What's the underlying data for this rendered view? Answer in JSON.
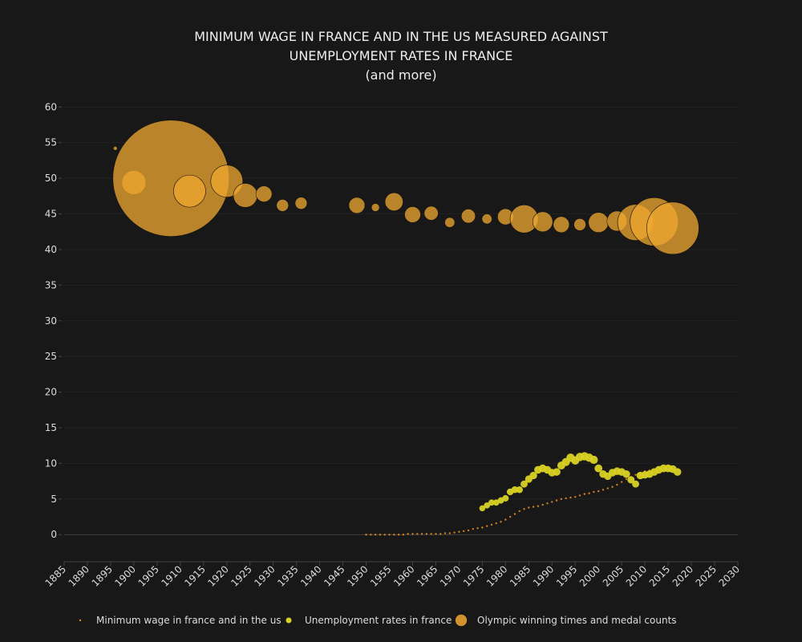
{
  "chart_data": {
    "type": "scatter",
    "title_lines": [
      "MINIMUM WAGE IN FRANCE AND IN THE US MEASURED AGAINST",
      "UNEMPLOYMENT RATES IN FRANCE",
      "(and more)"
    ],
    "xlabel": "",
    "ylabel": "",
    "xlim": [
      1885,
      2030
    ],
    "ylim": [
      -3.8,
      61.5
    ],
    "x_ticks": [
      1885,
      1890,
      1895,
      1900,
      1905,
      1910,
      1915,
      1920,
      1925,
      1930,
      1935,
      1940,
      1945,
      1950,
      1955,
      1960,
      1965,
      1970,
      1975,
      1980,
      1985,
      1990,
      1995,
      2000,
      2005,
      2010,
      2015,
      2020,
      2025,
      2030
    ],
    "y_ticks": [
      0,
      5,
      10,
      15,
      20,
      25,
      30,
      35,
      40,
      45,
      50,
      55,
      60
    ],
    "grid": true,
    "legend_position": "bottom",
    "series": [
      {
        "name": "Minimum wage in france and in the us",
        "color": "#e58a1f",
        "marker": "dot",
        "points": [
          [
            1950,
            0.0
          ],
          [
            1951,
            0.0
          ],
          [
            1952,
            0.0
          ],
          [
            1953,
            0.0
          ],
          [
            1954,
            0.0
          ],
          [
            1955,
            0.0
          ],
          [
            1956,
            0.0
          ],
          [
            1957,
            0.0
          ],
          [
            1958,
            0.0
          ],
          [
            1959,
            0.1
          ],
          [
            1960,
            0.1
          ],
          [
            1961,
            0.1
          ],
          [
            1962,
            0.1
          ],
          [
            1963,
            0.1
          ],
          [
            1964,
            0.1
          ],
          [
            1965,
            0.1
          ],
          [
            1966,
            0.1
          ],
          [
            1967,
            0.2
          ],
          [
            1968,
            0.2
          ],
          [
            1969,
            0.3
          ],
          [
            1970,
            0.4
          ],
          [
            1971,
            0.5
          ],
          [
            1972,
            0.6
          ],
          [
            1973,
            0.8
          ],
          [
            1974,
            0.9
          ],
          [
            1975,
            1.0
          ],
          [
            1976,
            1.2
          ],
          [
            1977,
            1.4
          ],
          [
            1978,
            1.6
          ],
          [
            1979,
            1.8
          ],
          [
            1980,
            2.1
          ],
          [
            1981,
            2.5
          ],
          [
            1982,
            2.9
          ],
          [
            1983,
            3.3
          ],
          [
            1984,
            3.6
          ],
          [
            1985,
            3.8
          ],
          [
            1986,
            3.9
          ],
          [
            1987,
            4.0
          ],
          [
            1988,
            4.2
          ],
          [
            1989,
            4.4
          ],
          [
            1990,
            4.6
          ],
          [
            1991,
            4.8
          ],
          [
            1992,
            5.0
          ],
          [
            1993,
            5.1
          ],
          [
            1994,
            5.2
          ],
          [
            1995,
            5.3
          ],
          [
            1996,
            5.5
          ],
          [
            1997,
            5.7
          ],
          [
            1998,
            5.8
          ],
          [
            1999,
            6.0
          ],
          [
            2000,
            6.1
          ],
          [
            2001,
            6.3
          ],
          [
            2002,
            6.5
          ],
          [
            2003,
            6.7
          ],
          [
            2004,
            7.0
          ],
          [
            2005,
            7.4
          ],
          [
            2006,
            7.8
          ],
          [
            2007,
            8.1
          ],
          [
            2008,
            8.4
          ],
          [
            2009,
            8.6
          ],
          [
            2010,
            8.9
          ],
          [
            2011,
            9.0
          ],
          [
            2012,
            9.1
          ],
          [
            2013,
            9.2
          ],
          [
            2014,
            9.2
          ],
          [
            2015,
            9.2
          ],
          [
            2016,
            9.2
          ],
          [
            2017,
            9.2
          ]
        ]
      },
      {
        "name": "Unemployment rates in france",
        "color": "#d9d123",
        "marker": "circle",
        "points": [
          [
            1975,
            3.7
          ],
          [
            1976,
            4.1
          ],
          [
            1977,
            4.5
          ],
          [
            1978,
            4.5
          ],
          [
            1979,
            4.8
          ],
          [
            1980,
            5.1
          ],
          [
            1981,
            6.0
          ],
          [
            1982,
            6.3
          ],
          [
            1983,
            6.3
          ],
          [
            1984,
            7.1
          ],
          [
            1985,
            7.8
          ],
          [
            1986,
            8.3
          ],
          [
            1987,
            9.1
          ],
          [
            1988,
            9.3
          ],
          [
            1989,
            9.1
          ],
          [
            1990,
            8.7
          ],
          [
            1991,
            8.8
          ],
          [
            1992,
            9.7
          ],
          [
            1993,
            10.2
          ],
          [
            1994,
            10.8
          ],
          [
            1995,
            10.4
          ],
          [
            1996,
            10.9
          ],
          [
            1997,
            11.0
          ],
          [
            1998,
            10.8
          ],
          [
            1999,
            10.5
          ],
          [
            2000,
            9.3
          ],
          [
            2001,
            8.5
          ],
          [
            2002,
            8.2
          ],
          [
            2003,
            8.7
          ],
          [
            2004,
            8.9
          ],
          [
            2005,
            8.8
          ],
          [
            2006,
            8.5
          ],
          [
            2007,
            7.7
          ],
          [
            2008,
            7.1
          ],
          [
            2009,
            8.3
          ],
          [
            2010,
            8.4
          ],
          [
            2011,
            8.5
          ],
          [
            2012,
            8.8
          ],
          [
            2013,
            9.1
          ],
          [
            2014,
            9.3
          ],
          [
            2015,
            9.3
          ],
          [
            2016,
            9.2
          ],
          [
            2017,
            8.8
          ]
        ]
      },
      {
        "name": "Olympic winning times and medal counts",
        "color": "#f0a830",
        "marker": "bubble",
        "points": [
          [
            1896,
            54.2,
            1
          ],
          [
            1900,
            49.4,
            6
          ],
          [
            1908,
            50.0,
            29
          ],
          [
            1912,
            48.2,
            8
          ],
          [
            1920,
            49.6,
            8
          ],
          [
            1924,
            47.6,
            6
          ],
          [
            1928,
            47.8,
            4
          ],
          [
            1932,
            46.2,
            3
          ],
          [
            1936,
            46.5,
            3
          ],
          [
            1948,
            46.2,
            4
          ],
          [
            1952,
            45.9,
            2
          ],
          [
            1956,
            46.7,
            4.5
          ],
          [
            1960,
            44.9,
            4
          ],
          [
            1964,
            45.1,
            3.5
          ],
          [
            1968,
            43.8,
            2.5
          ],
          [
            1972,
            44.7,
            3.5
          ],
          [
            1976,
            44.3,
            2.5
          ],
          [
            1980,
            44.6,
            4
          ],
          [
            1984,
            44.3,
            7
          ],
          [
            1988,
            43.9,
            5
          ],
          [
            1992,
            43.5,
            4
          ],
          [
            1996,
            43.5,
            3
          ],
          [
            2000,
            43.8,
            5
          ],
          [
            2004,
            44.0,
            5
          ],
          [
            2008,
            43.8,
            9
          ],
          [
            2012,
            43.9,
            12
          ],
          [
            2016,
            43.0,
            13
          ]
        ]
      }
    ]
  }
}
